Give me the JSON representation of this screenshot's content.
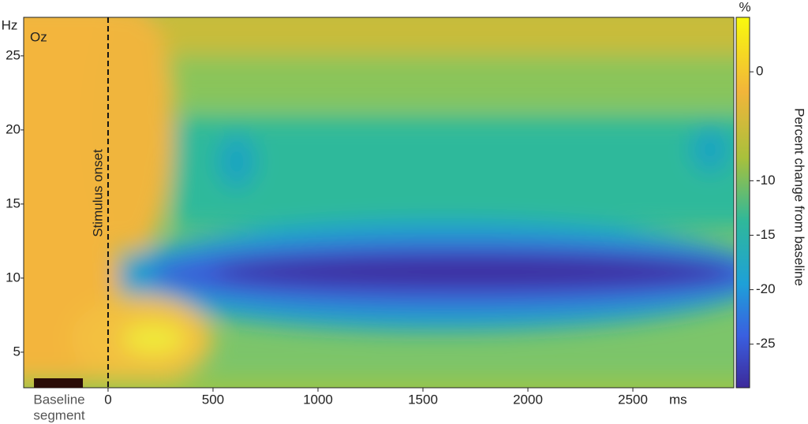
{
  "chart_data": {
    "type": "contour",
    "y_unit": "Hz",
    "channel": "Oz",
    "onset_label": "Stimulus onset",
    "baseline_label": [
      "Baseline",
      "segment"
    ],
    "x_unit": "ms",
    "colorbar_unit": "%",
    "colorbar_label": "Percent change from baseline",
    "xlim": [
      -402,
      2981
    ],
    "xticks": [
      0,
      500,
      1000,
      1500,
      2000,
      2500
    ],
    "ylim": [
      2.6,
      27.6
    ],
    "yticks": [
      5,
      10,
      15,
      20,
      25
    ],
    "clim": [
      -29,
      5
    ],
    "cticks": [
      0,
      -10,
      -15,
      -20,
      -25
    ],
    "onset": 0,
    "baseline_segment": [
      -353,
      -120
    ]
  }
}
